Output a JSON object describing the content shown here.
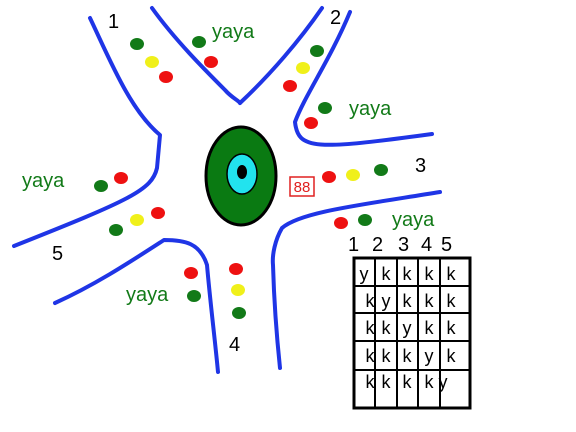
{
  "roads": {
    "color": "#1f35e6"
  },
  "roundabout": {
    "outer_color": "#0a7a12",
    "inner_color": "#22e3ee",
    "center_color": "#000000"
  },
  "display": {
    "text": "88",
    "color": "#e02020"
  },
  "light_colors": {
    "red": "#ee1111",
    "yellow": "#f0f01a",
    "green": "#127a18"
  },
  "arms": [
    {
      "number": "1",
      "label": "yaya"
    },
    {
      "number": "2",
      "label": "yaya"
    },
    {
      "number": "3",
      "label": "yaya"
    },
    {
      "number": "4",
      "label": "yaya"
    },
    {
      "number": "5",
      "label": "yaya"
    }
  ],
  "matrix": {
    "column_headers": [
      "1",
      "2",
      "3",
      "4",
      "5"
    ],
    "rows": [
      [
        "y",
        "k",
        "k",
        "k",
        "k"
      ],
      [
        "k",
        "y",
        "k",
        "k",
        "k"
      ],
      [
        "k",
        "k",
        "y",
        "k",
        "k"
      ],
      [
        "k",
        "k",
        "k",
        "y",
        "k"
      ],
      [
        "k",
        "k",
        "k",
        "k",
        "y"
      ]
    ]
  }
}
